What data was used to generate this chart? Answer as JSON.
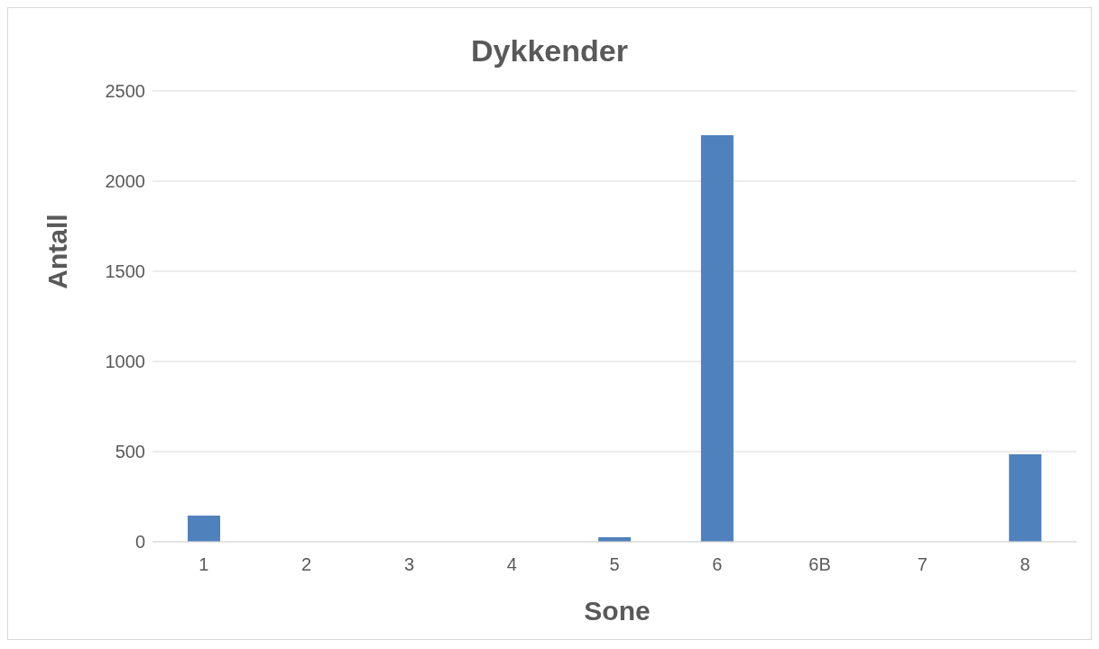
{
  "chart_data": {
    "type": "bar",
    "title": "Dykkender",
    "xlabel": "Sone",
    "ylabel": "Antall",
    "categories": [
      "1",
      "2",
      "3",
      "4",
      "5",
      "6",
      "6B",
      "7",
      "8"
    ],
    "values": [
      145,
      0,
      0,
      0,
      25,
      2255,
      0,
      0,
      485
    ],
    "color": "#4f81bd",
    "ylim": [
      0,
      2500
    ],
    "yticks": [
      0,
      500,
      1000,
      1500,
      2000,
      2500
    ],
    "grid": "y"
  }
}
